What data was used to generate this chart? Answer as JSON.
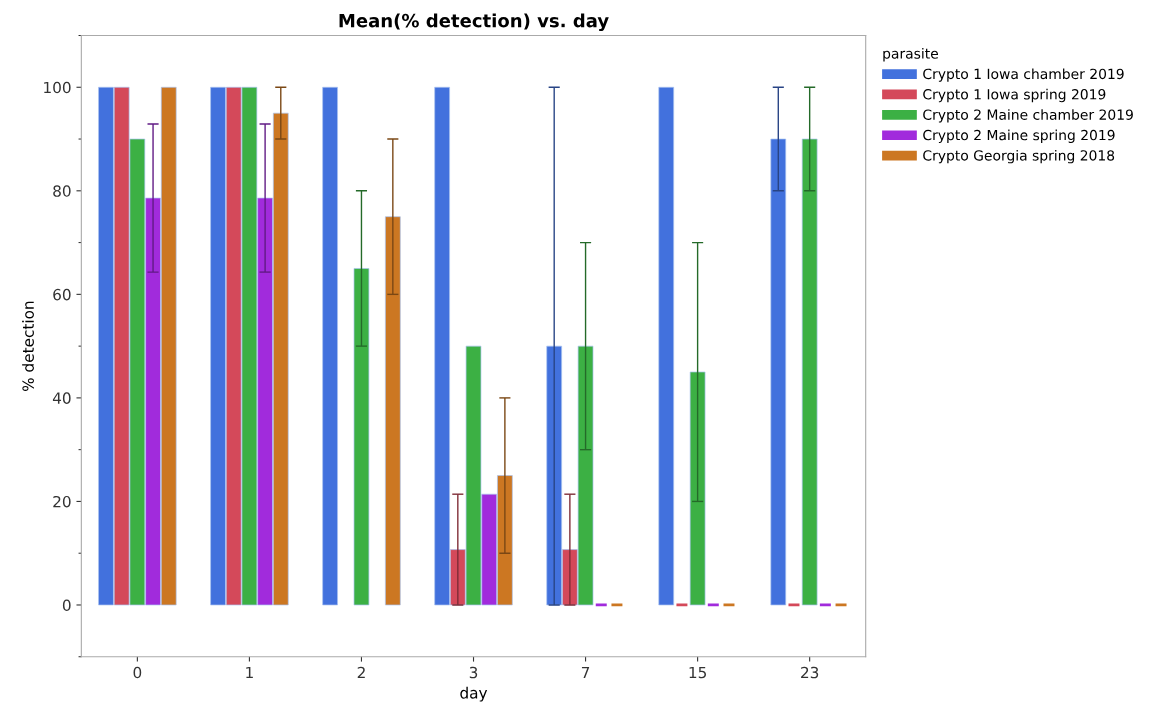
{
  "chart_data": {
    "type": "bar",
    "title": "Mean(% detection) vs. day",
    "xlabel": "day",
    "ylabel": "% detection",
    "legend_title": "parasite",
    "categories": [
      "0",
      "1",
      "2",
      "3",
      "7",
      "15",
      "23"
    ],
    "series": [
      {
        "name": "Crypto 1 Iowa chamber 2019",
        "color": "#4271dd",
        "values": [
          100,
          100,
          100,
          100,
          50,
          100,
          90
        ],
        "errors": [
          null,
          null,
          null,
          null,
          [
            0,
            100
          ],
          null,
          [
            80,
            100
          ]
        ]
      },
      {
        "name": "Crypto 1 Iowa spring 2019",
        "color": "#d4495a",
        "values": [
          100,
          100,
          null,
          10.7,
          10.7,
          0,
          0
        ],
        "errors": [
          null,
          null,
          null,
          [
            0,
            21.4
          ],
          [
            0,
            21.4
          ],
          null,
          null
        ]
      },
      {
        "name": "Crypto 2 Maine chamber 2019",
        "color": "#3cb044",
        "values": [
          90,
          100,
          65,
          50,
          50,
          45,
          90
        ],
        "errors": [
          null,
          null,
          [
            50,
            80
          ],
          null,
          [
            30,
            70
          ],
          [
            20,
            70
          ],
          [
            80,
            100
          ]
        ]
      },
      {
        "name": "Crypto 2 Maine spring 2019",
        "color": "#a12bdc",
        "values": [
          78.6,
          78.6,
          null,
          21.4,
          0,
          0,
          0
        ],
        "errors": [
          [
            64.3,
            92.9
          ],
          [
            64.3,
            92.9
          ],
          null,
          null,
          null,
          null,
          null
        ]
      },
      {
        "name": "Crypto Georgia spring 2018",
        "color": "#cc7722",
        "values": [
          100,
          95,
          75,
          25,
          0,
          0,
          0
        ],
        "errors": [
          null,
          [
            90,
            100
          ],
          [
            60,
            90
          ],
          [
            10,
            40
          ],
          null,
          null,
          null
        ]
      }
    ],
    "ylim": [
      -10,
      110
    ],
    "yticks": [
      0,
      20,
      40,
      60,
      80,
      100
    ],
    "grid": false,
    "legend": "top right"
  }
}
